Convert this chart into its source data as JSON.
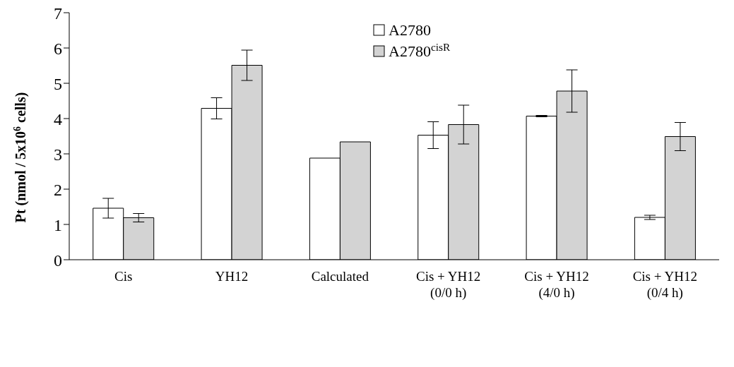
{
  "chart_data": {
    "type": "bar",
    "ylabel": "Pt (nmol / 5x10$^{6}$ cells)",
    "categories": [
      "Cis",
      "YH12",
      "Calculated",
      "Cis + YH12\n(0/0 h)",
      "Cis + YH12\n(4/0 h)",
      "Cis + YH12\n(0/4 h)"
    ],
    "series": [
      {
        "name": "A2780",
        "color": "#ffffff",
        "values": [
          1.46,
          4.29,
          2.88,
          3.53,
          4.07,
          1.2
        ],
        "errors": [
          0.28,
          0.3,
          null,
          0.38,
          0.02,
          0.06
        ]
      },
      {
        "name": "A2780$^{cisR}$",
        "color": "#d3d3d3",
        "values": [
          1.19,
          5.51,
          3.34,
          3.83,
          4.78,
          3.49
        ],
        "errors": [
          0.12,
          0.43,
          null,
          0.55,
          0.6,
          0.4
        ]
      }
    ],
    "ylim": [
      0,
      7
    ],
    "yticks": [
      0,
      1,
      2,
      3,
      4,
      5,
      6,
      7
    ],
    "grid": false,
    "legend": "top"
  }
}
